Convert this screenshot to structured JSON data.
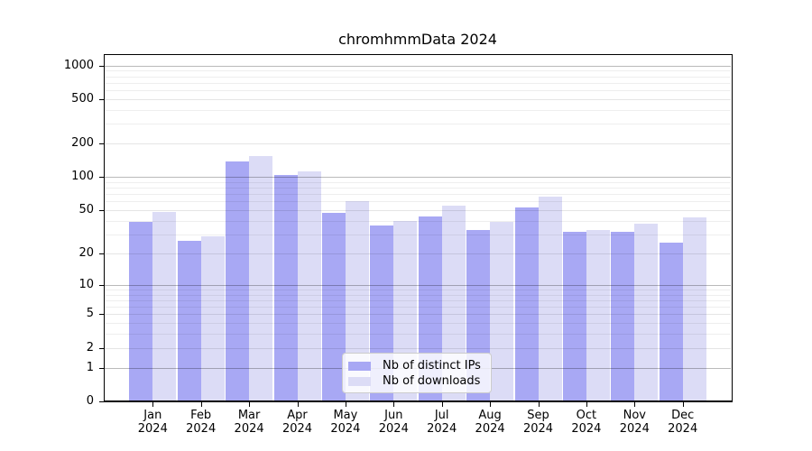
{
  "chart_data": {
    "type": "bar",
    "title": "chromhmmData 2024",
    "year_label": "2024",
    "categories": [
      "Jan",
      "Feb",
      "Mar",
      "Apr",
      "May",
      "Jun",
      "Jul",
      "Aug",
      "Sep",
      "Oct",
      "Nov",
      "Dec"
    ],
    "series": [
      {
        "name": "Nb of distinct IPs",
        "color": "#a8a8f4",
        "values": [
          39,
          26,
          138,
          105,
          47,
          36,
          44,
          33,
          53,
          32,
          32,
          25
        ]
      },
      {
        "name": "Nb of downloads",
        "color": "#dcdcf6",
        "values": [
          48,
          29,
          154,
          113,
          61,
          40,
          55,
          39,
          66,
          33,
          38,
          43
        ]
      }
    ],
    "y_axis": {
      "scale": "log1p",
      "ticks": [
        0,
        1,
        2,
        5,
        10,
        20,
        50,
        100,
        200,
        500,
        1000
      ],
      "major_gridlines": [
        1,
        10,
        100,
        1000
      ],
      "minor_gridlines": [
        2,
        5,
        20,
        50,
        200,
        500
      ],
      "faint_gridlines": [
        3,
        4,
        6,
        7,
        8,
        9,
        30,
        40,
        60,
        70,
        80,
        90,
        300,
        400,
        600,
        700,
        800,
        900
      ],
      "ylim": [
        0,
        1100
      ]
    },
    "legend": {
      "position": "lower center"
    },
    "background": "#ffffff"
  }
}
